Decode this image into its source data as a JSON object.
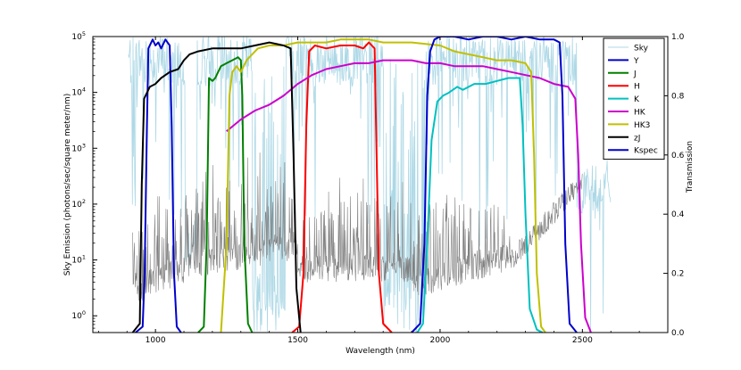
{
  "chart_data": {
    "type": "line",
    "xlabel": "Wavelength (nm)",
    "ylabel_left": "Sky Emission (photons/sec/square meter/nm)",
    "ylabel_right": "Transmission",
    "xlim": [
      780,
      2800
    ],
    "ylim_left_log10": [
      -0.3,
      5
    ],
    "ylim_right": [
      0,
      1
    ],
    "x_ticks": [
      1000,
      1500,
      2000,
      2500
    ],
    "y_left_ticks": [
      {
        "exp": 0,
        "label": "10",
        "sup": "0"
      },
      {
        "exp": 1,
        "label": "10",
        "sup": "1"
      },
      {
        "exp": 2,
        "label": "10",
        "sup": "2"
      },
      {
        "exp": 3,
        "label": "10",
        "sup": "3"
      },
      {
        "exp": 4,
        "label": "10",
        "sup": "4"
      },
      {
        "exp": 5,
        "label": "10",
        "sup": "5"
      }
    ],
    "y_right_ticks": [
      {
        "value": 0.0,
        "label": "0.0"
      },
      {
        "value": 0.2,
        "label": "0.2"
      },
      {
        "value": 0.4,
        "label": "0.4"
      },
      {
        "value": 0.6,
        "label": "0.6"
      },
      {
        "value": 0.8,
        "label": "0.8"
      },
      {
        "value": 1.0,
        "label": "1.0"
      }
    ],
    "legend_position": "top-right",
    "sky_color": "#add8e6",
    "sky_emission_color": "#808080",
    "series": [
      {
        "name": "Sky",
        "color": "#add8e6",
        "role": "atmospheric-transmission"
      },
      {
        "name": "Y",
        "color": "#0000cc",
        "points": [
          [
            930,
            0
          ],
          [
            955,
            0.02
          ],
          [
            962,
            0.2
          ],
          [
            970,
            0.7
          ],
          [
            975,
            0.96
          ],
          [
            990,
            0.99
          ],
          [
            1000,
            0.97
          ],
          [
            1010,
            0.98
          ],
          [
            1020,
            0.96
          ],
          [
            1035,
            0.99
          ],
          [
            1050,
            0.97
          ],
          [
            1057,
            0.7
          ],
          [
            1065,
            0.2
          ],
          [
            1075,
            0.02
          ],
          [
            1090,
            0
          ]
        ]
      },
      {
        "name": "J",
        "color": "#008000",
        "points": [
          [
            1150,
            0
          ],
          [
            1170,
            0.02
          ],
          [
            1180,
            0.3
          ],
          [
            1188,
            0.86
          ],
          [
            1200,
            0.85
          ],
          [
            1210,
            0.86
          ],
          [
            1215,
            0.87
          ],
          [
            1230,
            0.9
          ],
          [
            1250,
            0.91
          ],
          [
            1270,
            0.92
          ],
          [
            1290,
            0.93
          ],
          [
            1300,
            0.92
          ],
          [
            1305,
            0.8
          ],
          [
            1312,
            0.3
          ],
          [
            1325,
            0.03
          ],
          [
            1340,
            0
          ]
        ]
      },
      {
        "name": "H",
        "color": "#ff0000",
        "points": [
          [
            1480,
            0
          ],
          [
            1505,
            0.02
          ],
          [
            1520,
            0.2
          ],
          [
            1530,
            0.7
          ],
          [
            1540,
            0.95
          ],
          [
            1560,
            0.97
          ],
          [
            1600,
            0.96
          ],
          [
            1650,
            0.97
          ],
          [
            1700,
            0.97
          ],
          [
            1730,
            0.96
          ],
          [
            1750,
            0.98
          ],
          [
            1770,
            0.96
          ],
          [
            1775,
            0.7
          ],
          [
            1785,
            0.2
          ],
          [
            1800,
            0.03
          ],
          [
            1830,
            0
          ]
        ]
      },
      {
        "name": "K",
        "color": "#00c0c0",
        "points": [
          [
            1920,
            0
          ],
          [
            1940,
            0.03
          ],
          [
            1955,
            0.3
          ],
          [
            1970,
            0.65
          ],
          [
            1990,
            0.78
          ],
          [
            2010,
            0.8
          ],
          [
            2030,
            0.81
          ],
          [
            2060,
            0.83
          ],
          [
            2080,
            0.82
          ],
          [
            2120,
            0.84
          ],
          [
            2160,
            0.84
          ],
          [
            2200,
            0.85
          ],
          [
            2240,
            0.86
          ],
          [
            2280,
            0.86
          ],
          [
            2290,
            0.7
          ],
          [
            2300,
            0.4
          ],
          [
            2315,
            0.08
          ],
          [
            2340,
            0.01
          ],
          [
            2360,
            0
          ]
        ]
      },
      {
        "name": "HK",
        "color": "#cc00cc",
        "points": [
          [
            1250,
            0.68
          ],
          [
            1300,
            0.72
          ],
          [
            1350,
            0.75
          ],
          [
            1400,
            0.77
          ],
          [
            1450,
            0.8
          ],
          [
            1500,
            0.84
          ],
          [
            1550,
            0.87
          ],
          [
            1600,
            0.89
          ],
          [
            1650,
            0.9
          ],
          [
            1700,
            0.91
          ],
          [
            1750,
            0.91
          ],
          [
            1800,
            0.92
          ],
          [
            1850,
            0.92
          ],
          [
            1900,
            0.92
          ],
          [
            1950,
            0.91
          ],
          [
            2000,
            0.91
          ],
          [
            2050,
            0.9
          ],
          [
            2100,
            0.9
          ],
          [
            2150,
            0.9
          ],
          [
            2200,
            0.89
          ],
          [
            2250,
            0.88
          ],
          [
            2300,
            0.87
          ],
          [
            2350,
            0.86
          ],
          [
            2400,
            0.84
          ],
          [
            2450,
            0.83
          ],
          [
            2475,
            0.79
          ],
          [
            2485,
            0.6
          ],
          [
            2495,
            0.3
          ],
          [
            2510,
            0.05
          ],
          [
            2530,
            0
          ]
        ]
      },
      {
        "name": "HK3",
        "color": "#c0c000",
        "points": [
          [
            1230,
            0
          ],
          [
            1250,
            0.3
          ],
          [
            1260,
            0.8
          ],
          [
            1270,
            0.88
          ],
          [
            1285,
            0.9
          ],
          [
            1300,
            0.88
          ],
          [
            1320,
            0.92
          ],
          [
            1340,
            0.94
          ],
          [
            1360,
            0.96
          ],
          [
            1400,
            0.97
          ],
          [
            1450,
            0.97
          ],
          [
            1500,
            0.98
          ],
          [
            1550,
            0.98
          ],
          [
            1600,
            0.98
          ],
          [
            1650,
            0.99
          ],
          [
            1700,
            0.99
          ],
          [
            1750,
            0.99
          ],
          [
            1800,
            0.98
          ],
          [
            1900,
            0.98
          ],
          [
            2000,
            0.97
          ],
          [
            2050,
            0.95
          ],
          [
            2100,
            0.94
          ],
          [
            2150,
            0.93
          ],
          [
            2200,
            0.92
          ],
          [
            2250,
            0.92
          ],
          [
            2300,
            0.91
          ],
          [
            2320,
            0.88
          ],
          [
            2330,
            0.6
          ],
          [
            2340,
            0.2
          ],
          [
            2355,
            0.02
          ],
          [
            2370,
            0
          ]
        ]
      },
      {
        "name": "zJ",
        "color": "#000000",
        "points": [
          [
            920,
            0
          ],
          [
            945,
            0.03
          ],
          [
            952,
            0.5
          ],
          [
            960,
            0.79
          ],
          [
            980,
            0.83
          ],
          [
            1000,
            0.84
          ],
          [
            1020,
            0.86
          ],
          [
            1050,
            0.88
          ],
          [
            1080,
            0.89
          ],
          [
            1100,
            0.92
          ],
          [
            1120,
            0.94
          ],
          [
            1150,
            0.95
          ],
          [
            1200,
            0.96
          ],
          [
            1250,
            0.96
          ],
          [
            1300,
            0.96
          ],
          [
            1350,
            0.97
          ],
          [
            1400,
            0.98
          ],
          [
            1450,
            0.97
          ],
          [
            1475,
            0.96
          ],
          [
            1485,
            0.6
          ],
          [
            1495,
            0.15
          ],
          [
            1510,
            0
          ]
        ]
      },
      {
        "name": "Kspec",
        "color": "#0000cc",
        "points": [
          [
            1900,
            0
          ],
          [
            1930,
            0.03
          ],
          [
            1945,
            0.3
          ],
          [
            1955,
            0.8
          ],
          [
            1965,
            0.95
          ],
          [
            1980,
            0.99
          ],
          [
            2000,
            1.0
          ],
          [
            2050,
            1.0
          ],
          [
            2100,
            0.99
          ],
          [
            2150,
            1.0
          ],
          [
            2200,
            1.0
          ],
          [
            2250,
            0.99
          ],
          [
            2300,
            1.0
          ],
          [
            2350,
            0.99
          ],
          [
            2400,
            0.99
          ],
          [
            2420,
            0.98
          ],
          [
            2430,
            0.8
          ],
          [
            2440,
            0.3
          ],
          [
            2455,
            0.03
          ],
          [
            2480,
            0
          ]
        ]
      }
    ]
  }
}
